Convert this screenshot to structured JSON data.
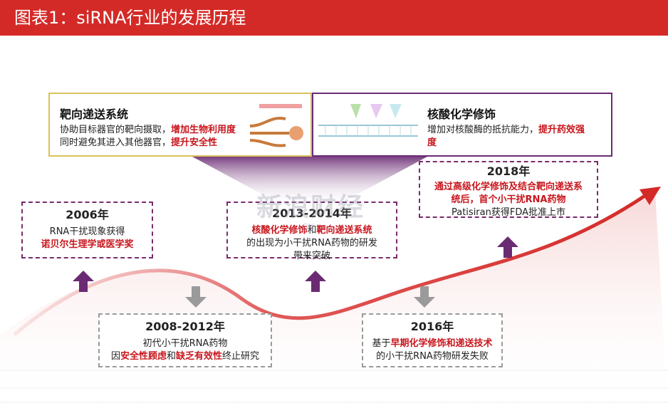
{
  "header": {
    "title": "图表1：siRNA行业的发展历程"
  },
  "top_left": {
    "title": "靶向递送系统",
    "line1_plain": "协助目标器官的靶向摄取，",
    "line1_red": "增加生物利用度",
    "line2_plain": "同时避免其进入其他器官，",
    "line2_red": "提升安全性"
  },
  "top_right": {
    "title": "核酸化学修饰",
    "line1_plain": "增加对核酸酶的抵抗能力，",
    "line1_red": "提升药效强",
    "line2_red": "度"
  },
  "events": {
    "e2006": {
      "year": "2006年",
      "line1": "RNA干扰现象获得",
      "line2_red": "诺贝尔生理学或医学奖"
    },
    "e2013": {
      "year": "2013-2014年",
      "line1_red_a": "核酸化学修饰",
      "line1_mid": "和",
      "line1_red_b": "靶向递送系统",
      "line2": "的出现为小干扰RNA药物的研发",
      "line3": "带来突破"
    },
    "e2018": {
      "year": "2018年",
      "line1_red": "通过高级化学修饰及结合靶向递送系",
      "line2_red": "统后，首个小干扰RNA药物",
      "line3": "Patisiran获得FDA批准上市"
    },
    "e2008": {
      "year": "2008-2012年",
      "line1": "初代小干扰RNA药物",
      "line2_a": "因",
      "line2_red_a": "安全性顾虑",
      "line2_b": "和",
      "line2_red_b": "缺乏有效性",
      "line2_c": "终止研究"
    },
    "e2016": {
      "year": "2016年",
      "line1_a": "基于",
      "line1_red": "早期化学修饰和递送技术",
      "line2": "的小干扰RNA药物研发失败"
    }
  },
  "watermark": {
    "text": "新浪财经",
    "sub": ".CN"
  },
  "colors": {
    "header": "#d42a27",
    "accent_red": "#c8161d",
    "purple": "#6b2b73",
    "gray_arrow": "#9a9a9a"
  }
}
